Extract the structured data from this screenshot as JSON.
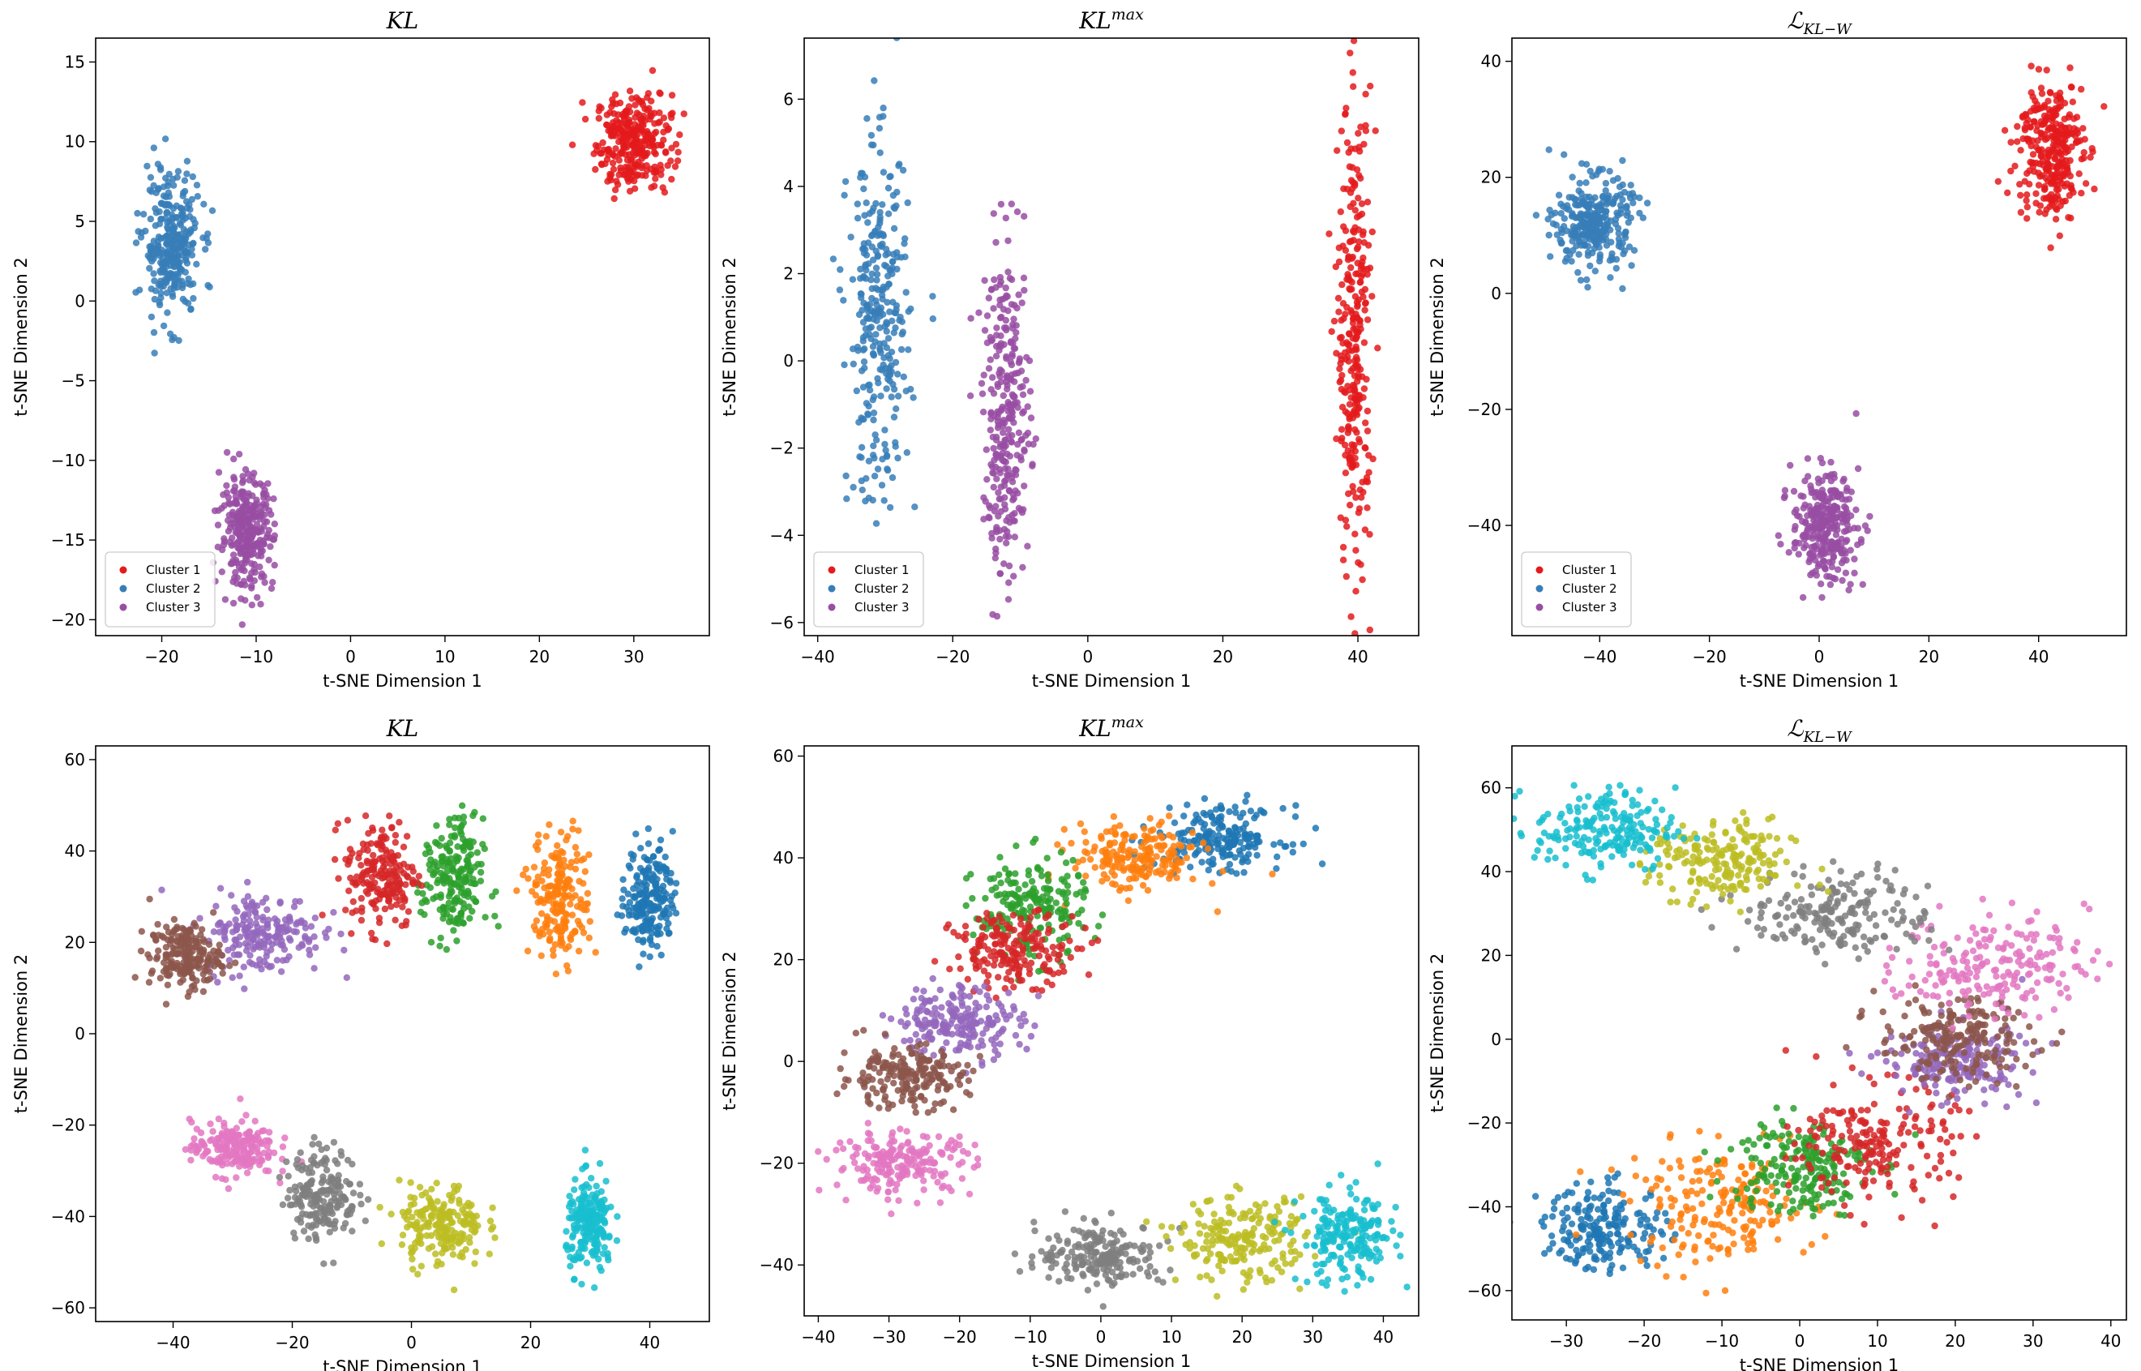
{
  "colors": {
    "Cluster 1": "#e41a1c",
    "Cluster 2": "#377eb8",
    "Cluster 3": "#984ea3",
    "palette10": [
      "#1f77b4",
      "#ff7f0e",
      "#2ca02c",
      "#d62728",
      "#9467bd",
      "#8c564b",
      "#e377c2",
      "#7f7f7f",
      "#bcbd22",
      "#17becf"
    ]
  },
  "chart_data": [
    {
      "type": "scatter",
      "title": "KL",
      "xlabel": "t-SNE Dimension 1",
      "ylabel": "t-SNE Dimension 2",
      "xlim": [
        -27,
        38
      ],
      "ylim": [
        -21,
        16.5
      ],
      "xticks": [
        -20,
        -10,
        0,
        10,
        20,
        30
      ],
      "yticks": [
        -20,
        -15,
        -10,
        -5,
        0,
        5,
        10,
        15
      ],
      "legend": [
        "Cluster 1",
        "Cluster 2",
        "Cluster 3"
      ],
      "legend_loc": "lower-left",
      "point_count": 300,
      "clusters": [
        {
          "name": "Cluster 1",
          "center": [
            30,
            10
          ],
          "spread": [
            4,
            3
          ]
        },
        {
          "name": "Cluster 2",
          "center": [
            -19,
            3.5
          ],
          "spread": [
            3,
            4.5
          ]
        },
        {
          "name": "Cluster 3",
          "center": [
            -11,
            -14.5
          ],
          "spread": [
            2.8,
            3.5
          ]
        }
      ]
    },
    {
      "type": "scatter",
      "title": "KL",
      "title_sup": "max",
      "xlabel": "t-SNE Dimension 1",
      "ylabel": "t-SNE Dimension 2",
      "xlim": [
        -42,
        49
      ],
      "ylim": [
        -6.3,
        7.4
      ],
      "xticks": [
        -40,
        -20,
        0,
        20,
        40
      ],
      "yticks": [
        -6,
        -4,
        -2,
        0,
        2,
        4,
        6
      ],
      "legend": [
        "Cluster 1",
        "Cluster 2",
        "Cluster 3"
      ],
      "legend_loc": "lower-left",
      "point_count": 300,
      "clusters": [
        {
          "name": "Cluster 1",
          "center": [
            39.5,
            0.5
          ],
          "spread": [
            2.5,
            5.5
          ]
        },
        {
          "name": "Cluster 2",
          "center": [
            -31,
            0.8
          ],
          "spread": [
            4.5,
            4
          ]
        },
        {
          "name": "Cluster 3",
          "center": [
            -12,
            -1.3
          ],
          "spread": [
            3.5,
            3.8
          ]
        }
      ]
    },
    {
      "type": "scatter",
      "title": "ℒ",
      "title_sub": "KL−W",
      "xlabel": "t-SNE Dimension 1",
      "ylabel": "t-SNE Dimension 2",
      "xlim": [
        -56,
        56
      ],
      "ylim": [
        -59,
        44
      ],
      "xticks": [
        -40,
        -20,
        0,
        20,
        40
      ],
      "yticks": [
        -40,
        -20,
        0,
        20,
        40
      ],
      "legend": [
        "Cluster 1",
        "Cluster 2",
        "Cluster 3"
      ],
      "legend_loc": "lower-left",
      "point_count": 300,
      "clusters": [
        {
          "name": "Cluster 1",
          "center": [
            42,
            25
          ],
          "spread": [
            6,
            12
          ]
        },
        {
          "name": "Cluster 2",
          "center": [
            -41,
            12
          ],
          "spread": [
            7,
            8
          ]
        },
        {
          "name": "Cluster 3",
          "center": [
            1,
            -40
          ],
          "spread": [
            6,
            9
          ]
        }
      ]
    },
    {
      "type": "scatter",
      "title": "KL",
      "xlabel": "t-SNE Dimension 1",
      "ylabel": "t-SNE Dimension 2",
      "xlim": [
        -53,
        50
      ],
      "ylim": [
        -63,
        63
      ],
      "xticks": [
        -40,
        -20,
        0,
        20,
        40
      ],
      "yticks": [
        -60,
        -40,
        -20,
        0,
        20,
        40,
        60
      ],
      "point_count": 200,
      "clusters": [
        {
          "center": [
            40,
            30
          ],
          "spread": [
            4,
            12
          ]
        },
        {
          "center": [
            25,
            30
          ],
          "spread": [
            5,
            14
          ]
        },
        {
          "center": [
            7,
            33
          ],
          "spread": [
            5,
            14
          ]
        },
        {
          "center": [
            -5,
            35
          ],
          "spread": [
            6,
            12
          ]
        },
        {
          "center": [
            -25,
            22
          ],
          "spread": [
            10,
            9
          ]
        },
        {
          "center": [
            -38,
            17
          ],
          "spread": [
            6,
            7
          ]
        },
        {
          "center": [
            -30,
            -25
          ],
          "spread": [
            7,
            6
          ]
        },
        {
          "center": [
            -15,
            -35
          ],
          "spread": [
            6,
            10
          ]
        },
        {
          "center": [
            5,
            -42
          ],
          "spread": [
            7,
            9
          ]
        },
        {
          "center": [
            30,
            -42
          ],
          "spread": [
            4,
            10
          ]
        }
      ]
    },
    {
      "type": "scatter",
      "title": "KL",
      "title_sup": "max",
      "xlabel": "t-SNE Dimension 1",
      "ylabel": "t-SNE Dimension 2",
      "xlim": [
        -42,
        45
      ],
      "ylim": [
        -50,
        62
      ],
      "xticks": [
        -40,
        -30,
        -20,
        -10,
        0,
        10,
        20,
        30,
        40
      ],
      "yticks": [
        -40,
        -20,
        0,
        20,
        40,
        60
      ],
      "point_count": 200,
      "clusters": [
        {
          "center": [
            17,
            44
          ],
          "spread": [
            9,
            6
          ]
        },
        {
          "center": [
            5,
            40
          ],
          "spread": [
            9,
            7
          ]
        },
        {
          "center": [
            -10,
            30
          ],
          "spread": [
            8,
            10
          ]
        },
        {
          "center": [
            -12,
            22
          ],
          "spread": [
            9,
            7
          ]
        },
        {
          "center": [
            -20,
            8
          ],
          "spread": [
            9,
            7
          ]
        },
        {
          "center": [
            -28,
            -3
          ],
          "spread": [
            9,
            6
          ]
        },
        {
          "center": [
            -28,
            -20
          ],
          "spread": [
            10,
            6
          ]
        },
        {
          "center": [
            0,
            -38
          ],
          "spread": [
            9,
            6
          ]
        },
        {
          "center": [
            20,
            -35
          ],
          "spread": [
            9,
            8
          ]
        },
        {
          "center": [
            35,
            -35
          ],
          "spread": [
            7,
            9
          ]
        }
      ]
    },
    {
      "type": "scatter",
      "title": "ℒ",
      "title_sub": "KL−W",
      "xlabel": "t-SNE Dimension 1",
      "ylabel": "t-SNE Dimension 2",
      "xlim": [
        -37,
        42
      ],
      "ylim": [
        -67,
        70
      ],
      "xticks": [
        -30,
        -20,
        -10,
        0,
        10,
        20,
        30,
        40
      ],
      "yticks": [
        -60,
        -40,
        -20,
        0,
        20,
        40,
        60
      ],
      "point_count": 200,
      "clusters": [
        {
          "center": [
            -25,
            -45
          ],
          "spread": [
            8,
            10
          ]
        },
        {
          "center": [
            -10,
            -40
          ],
          "spread": [
            12,
            14
          ]
        },
        {
          "center": [
            0,
            -30
          ],
          "spread": [
            9,
            12
          ]
        },
        {
          "center": [
            10,
            -25
          ],
          "spread": [
            10,
            14
          ]
        },
        {
          "center": [
            20,
            -5
          ],
          "spread": [
            9,
            9
          ]
        },
        {
          "center": [
            20,
            0
          ],
          "spread": [
            10,
            10
          ]
        },
        {
          "center": [
            25,
            18
          ],
          "spread": [
            12,
            12
          ]
        },
        {
          "center": [
            5,
            30
          ],
          "spread": [
            12,
            10
          ]
        },
        {
          "center": [
            -10,
            42
          ],
          "spread": [
            9,
            10
          ]
        },
        {
          "center": [
            -25,
            50
          ],
          "spread": [
            9,
            10
          ]
        }
      ]
    }
  ]
}
